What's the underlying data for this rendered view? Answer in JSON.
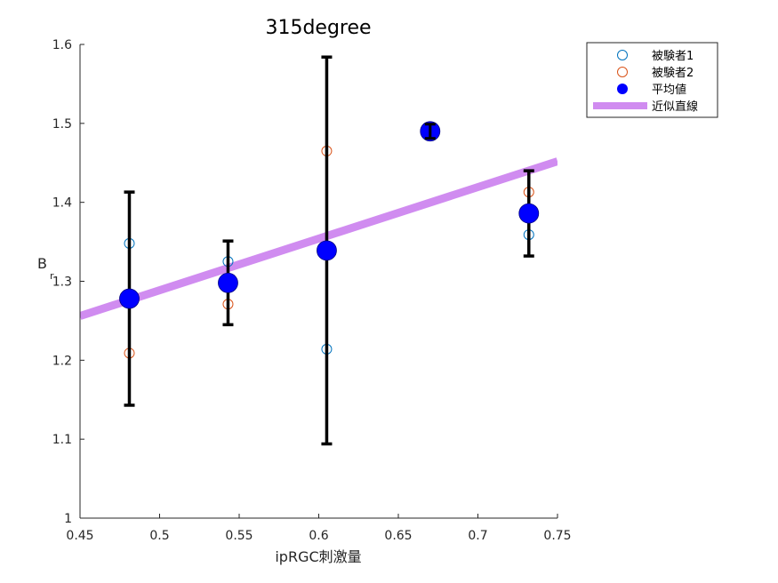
{
  "chart_data": {
    "type": "scatter",
    "title": "315degree",
    "xlabel": "ipRGC刺激量",
    "ylabel": "B",
    "ylabel_subscript": "r",
    "xlim": [
      0.45,
      0.75
    ],
    "ylim": [
      1.0,
      1.6
    ],
    "xticks": [
      "0.45",
      "0.5",
      "0.55",
      "0.6",
      "0.65",
      "0.7",
      "0.75"
    ],
    "yticks": [
      "1",
      "1.1",
      "1.2",
      "1.3",
      "1.4",
      "1.5",
      "1.6"
    ],
    "grid": false,
    "legend_position": "top-right-outside",
    "series": [
      {
        "name": "被験者1",
        "marker": "open-circle",
        "color": "#0072BD",
        "points": [
          {
            "x": 0.481,
            "y": 1.348
          },
          {
            "x": 0.543,
            "y": 1.325
          },
          {
            "x": 0.605,
            "y": 1.214
          },
          {
            "x": 0.67,
            "y": 1.49
          },
          {
            "x": 0.732,
            "y": 1.359
          }
        ]
      },
      {
        "name": "被験者2",
        "marker": "open-circle",
        "color": "#D95319",
        "points": [
          {
            "x": 0.481,
            "y": 1.209
          },
          {
            "x": 0.543,
            "y": 1.271
          },
          {
            "x": 0.605,
            "y": 1.465
          },
          {
            "x": 0.67,
            "y": 1.49
          },
          {
            "x": 0.732,
            "y": 1.413
          }
        ]
      },
      {
        "name": "平均値",
        "marker": "filled-circle",
        "color": "#0000FF",
        "points": [
          {
            "x": 0.481,
            "y": 1.278,
            "err_low": 1.143,
            "err_high": 1.413
          },
          {
            "x": 0.543,
            "y": 1.298,
            "err_low": 1.245,
            "err_high": 1.351
          },
          {
            "x": 0.605,
            "y": 1.339,
            "err_low": 1.094,
            "err_high": 1.584
          },
          {
            "x": 0.67,
            "y": 1.49,
            "err_low": 1.481,
            "err_high": 1.499
          },
          {
            "x": 0.732,
            "y": 1.386,
            "err_low": 1.332,
            "err_high": 1.44
          }
        ]
      },
      {
        "name": "近似直線",
        "marker": "line",
        "color": "#D08CF0",
        "points": [
          {
            "x": 0.45,
            "y": 1.256
          },
          {
            "x": 0.75,
            "y": 1.452
          }
        ]
      }
    ]
  }
}
